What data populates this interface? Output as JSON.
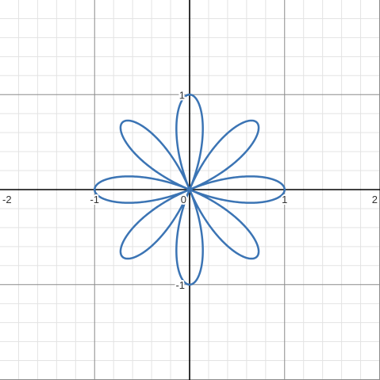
{
  "chart_data": {
    "type": "line",
    "title": "",
    "xlabel": "",
    "ylabel": "",
    "xlim": [
      -2,
      2
    ],
    "ylim": [
      -2,
      2
    ],
    "grid": true,
    "minor_step": 0.2,
    "major_step": 1,
    "x_ticks": [
      {
        "value": -2,
        "label": "-2"
      },
      {
        "value": -1,
        "label": "-1"
      },
      {
        "value": 0,
        "label": "0"
      },
      {
        "value": 1,
        "label": "1"
      },
      {
        "value": 2,
        "label": "2"
      }
    ],
    "y_ticks": [
      {
        "value": 1,
        "label": "1"
      },
      {
        "value": -1,
        "label": "-1"
      }
    ],
    "series": [
      {
        "curve": "polar rose r = cos(4θ)",
        "amplitude": 1,
        "petal_frequency": 4,
        "petals": 8,
        "color": "#3b74b4",
        "line_width": 2.5
      }
    ]
  }
}
